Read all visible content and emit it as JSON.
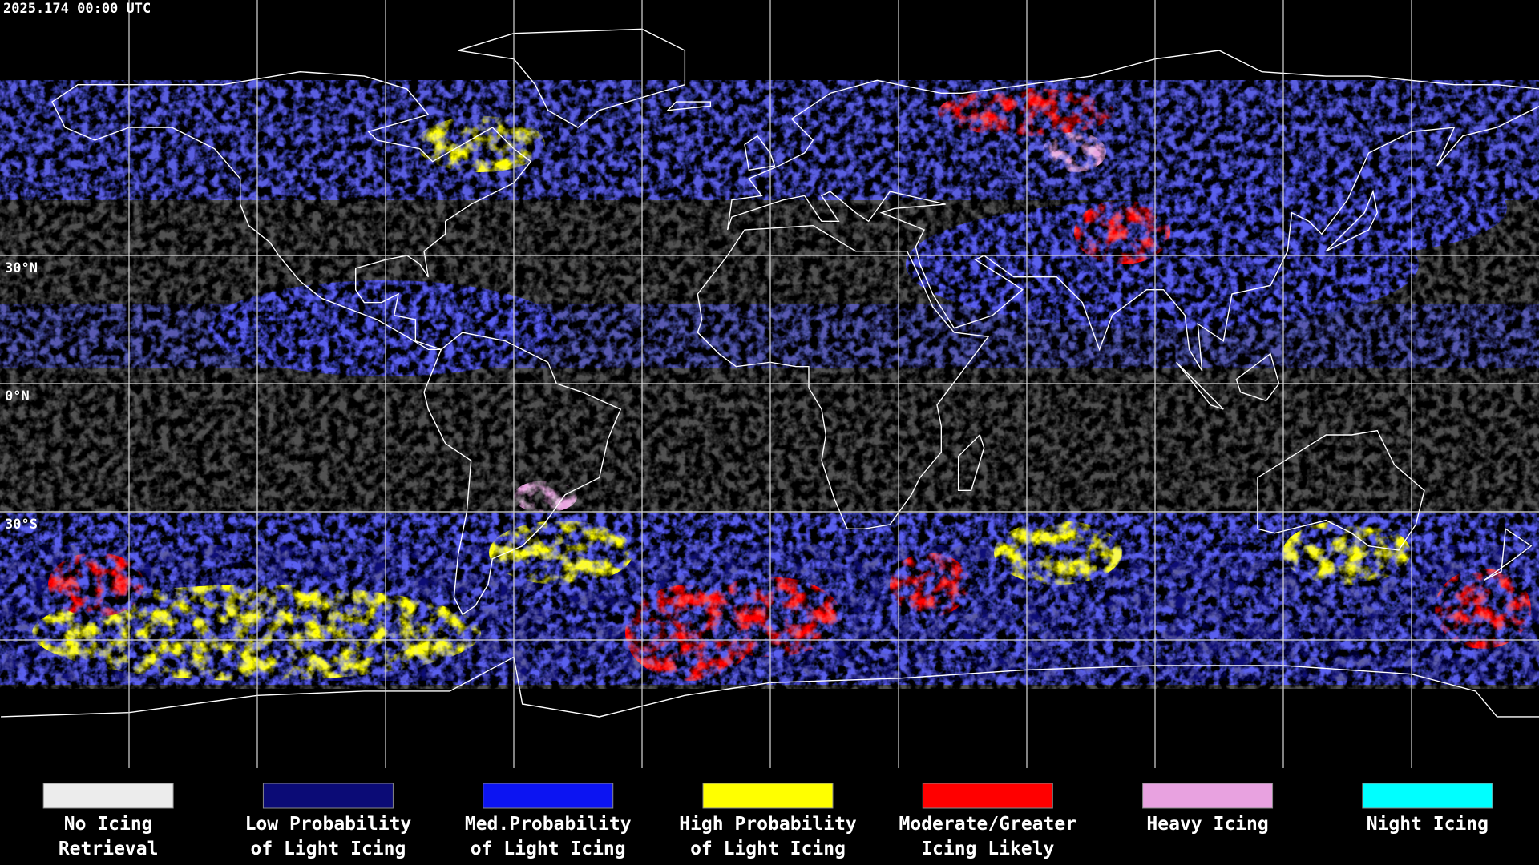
{
  "header": {
    "timestamp": "2025.174 00:00 UTC"
  },
  "map": {
    "lat_labels": [
      "30°N",
      "0°N",
      "30°S"
    ]
  },
  "legend": {
    "items": [
      {
        "lines": [
          "No Icing",
          "Retrieval"
        ],
        "color": "#ececec"
      },
      {
        "lines": [
          "Low Probability",
          "of Light Icing"
        ],
        "color": "#0b0b76"
      },
      {
        "lines": [
          "Med.Probability",
          "of Light Icing"
        ],
        "color": "#0c14f2"
      },
      {
        "lines": [
          "High Probability",
          "of Light Icing"
        ],
        "color": "#ffff00"
      },
      {
        "lines": [
          "Moderate/Greater",
          "Icing Likely"
        ],
        "color": "#ff0000"
      },
      {
        "lines": [
          "Heavy Icing"
        ],
        "color": "#e8a2e0"
      },
      {
        "lines": [
          "Night Icing"
        ],
        "color": "#00ffff"
      }
    ]
  }
}
